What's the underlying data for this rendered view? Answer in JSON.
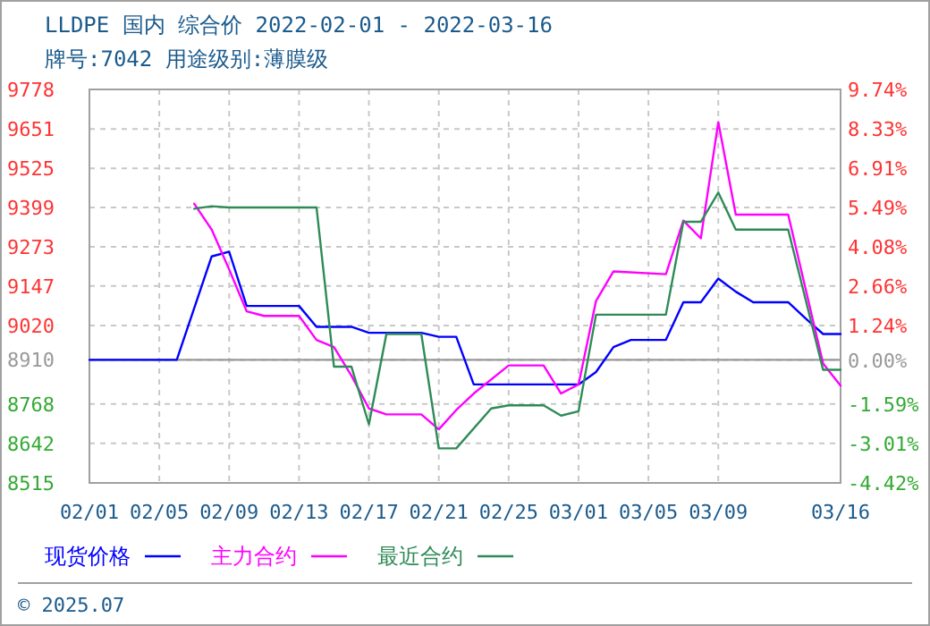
{
  "chart_data": {
    "type": "line",
    "title": "LLDPE 国内 综合价 2022-02-01 - 2022-03-16",
    "subtitle": "牌号:7042 用途级别:薄膜级",
    "xlim": [
      "--02-01",
      "--03-16"
    ],
    "xticks": [
      {
        "value": "--02-01",
        "label": "02/01"
      },
      {
        "value": "--02-05",
        "label": "02/05"
      },
      {
        "value": "--02-09",
        "label": "02/09"
      },
      {
        "value": "--02-13",
        "label": "02/13"
      },
      {
        "value": "--02-17",
        "label": "02/17"
      },
      {
        "value": "--02-21",
        "label": "02/21"
      },
      {
        "value": "--02-25",
        "label": "02/25"
      },
      {
        "value": "--03-01",
        "label": "03/01"
      },
      {
        "value": "--03-05",
        "label": "03/05"
      },
      {
        "value": "--03-09",
        "label": "03/09"
      },
      {
        "value": "--03-16",
        "label": "03/16"
      }
    ],
    "ylim": [
      8515,
      9778
    ],
    "yticks": [
      9778,
      9651,
      9525,
      9399,
      9273,
      9147,
      9020,
      8910,
      8768,
      8642,
      8515
    ],
    "y2lim": [
      -4.42,
      9.74
    ],
    "y2ticks": [
      {
        "value": 9.74,
        "label": "9.74%"
      },
      {
        "value": 8.33,
        "label": "8.33%"
      },
      {
        "value": 6.91,
        "label": "6.91%"
      },
      {
        "value": 5.49,
        "label": "5.49%"
      },
      {
        "value": 4.08,
        "label": "4.08%"
      },
      {
        "value": 2.66,
        "label": "2.66%"
      },
      {
        "value": 1.24,
        "label": "1.24%"
      },
      {
        "value": 0,
        "label": "0.00%"
      },
      {
        "value": -1.59,
        "label": "-1.59%"
      },
      {
        "value": -3.01,
        "label": "-3.01%"
      },
      {
        "value": -4.42,
        "label": "-4.42%"
      }
    ],
    "ref_lines": [
      {
        "axis": "y",
        "value": 8910,
        "color": "#999999",
        "line_style": "solid"
      }
    ],
    "grid": true,
    "legend": "bottom",
    "marker": "none",
    "line_style": "solid",
    "series": [
      {
        "name": "现货价格",
        "color": "#0000ff",
        "x": [
          "--02-01",
          "--02-06",
          "--02-08",
          "--02-09",
          "--02-10",
          "--02-13",
          "--02-14",
          "--02-16",
          "--02-17",
          "--02-20",
          "--02-21",
          "--02-22",
          "--02-23",
          "--03-01",
          "--03-02",
          "--03-03",
          "--03-04",
          "--03-06",
          "--03-07",
          "--03-08",
          "--03-09",
          "--03-10",
          "--03-11",
          "--03-13",
          "--03-14",
          "--03-15",
          "--03-16"
        ],
        "values": [
          8910,
          8910,
          9242,
          9257,
          9083,
          9083,
          9016,
          9016,
          8997,
          8997,
          8984,
          8984,
          8831,
          8831,
          8871,
          8951,
          8974,
          8974,
          9095,
          9095,
          9171,
          9129,
          9095,
          9095,
          9043,
          8993,
          8993
        ]
      },
      {
        "name": "主力合约",
        "color": "#ff00ff",
        "x": [
          "--02-07",
          "--02-08",
          "--02-09",
          "--02-10",
          "--02-11",
          "--02-13",
          "--02-14",
          "--02-15",
          "--02-16",
          "--02-17",
          "--02-18",
          "--02-20",
          "--02-21",
          "--02-22",
          "--02-23",
          "--02-25",
          "--02-27",
          "--02-28",
          "--03-01",
          "--03-02",
          "--03-03",
          "--03-06",
          "--03-07",
          "--03-08",
          "--03-09",
          "--03-10",
          "--03-13",
          "--03-15",
          "--03-16"
        ],
        "values": [
          9411,
          9328,
          9200,
          9066,
          9051,
          9051,
          8974,
          8951,
          8859,
          8754,
          8735,
          8735,
          8687,
          8749,
          8802,
          8892,
          8892,
          8802,
          8831,
          9099,
          9194,
          9185,
          9357,
          9300,
          9673,
          9376,
          9376,
          8898,
          8827
        ]
      },
      {
        "name": "最近合约",
        "color": "#2e8b57",
        "x": [
          "--02-07",
          "--02-08",
          "--02-09",
          "--02-14",
          "--02-15",
          "--02-16",
          "--02-17",
          "--02-18",
          "--02-20",
          "--02-21",
          "--02-22",
          "--02-24",
          "--02-25",
          "--02-27",
          "--02-28",
          "--03-01",
          "--03-02",
          "--03-06",
          "--03-07",
          "--03-08",
          "--03-09",
          "--03-10",
          "--03-13",
          "--03-15",
          "--03-16"
        ],
        "values": [
          9395,
          9403,
          9399,
          9399,
          8888,
          8888,
          8703,
          8993,
          8993,
          8626,
          8626,
          8754,
          8764,
          8764,
          8731,
          8745,
          9055,
          9055,
          9353,
          9353,
          9447,
          9328,
          9328,
          8878,
          8878
        ]
      }
    ],
    "annotations": [
      "© 2025.07"
    ]
  }
}
